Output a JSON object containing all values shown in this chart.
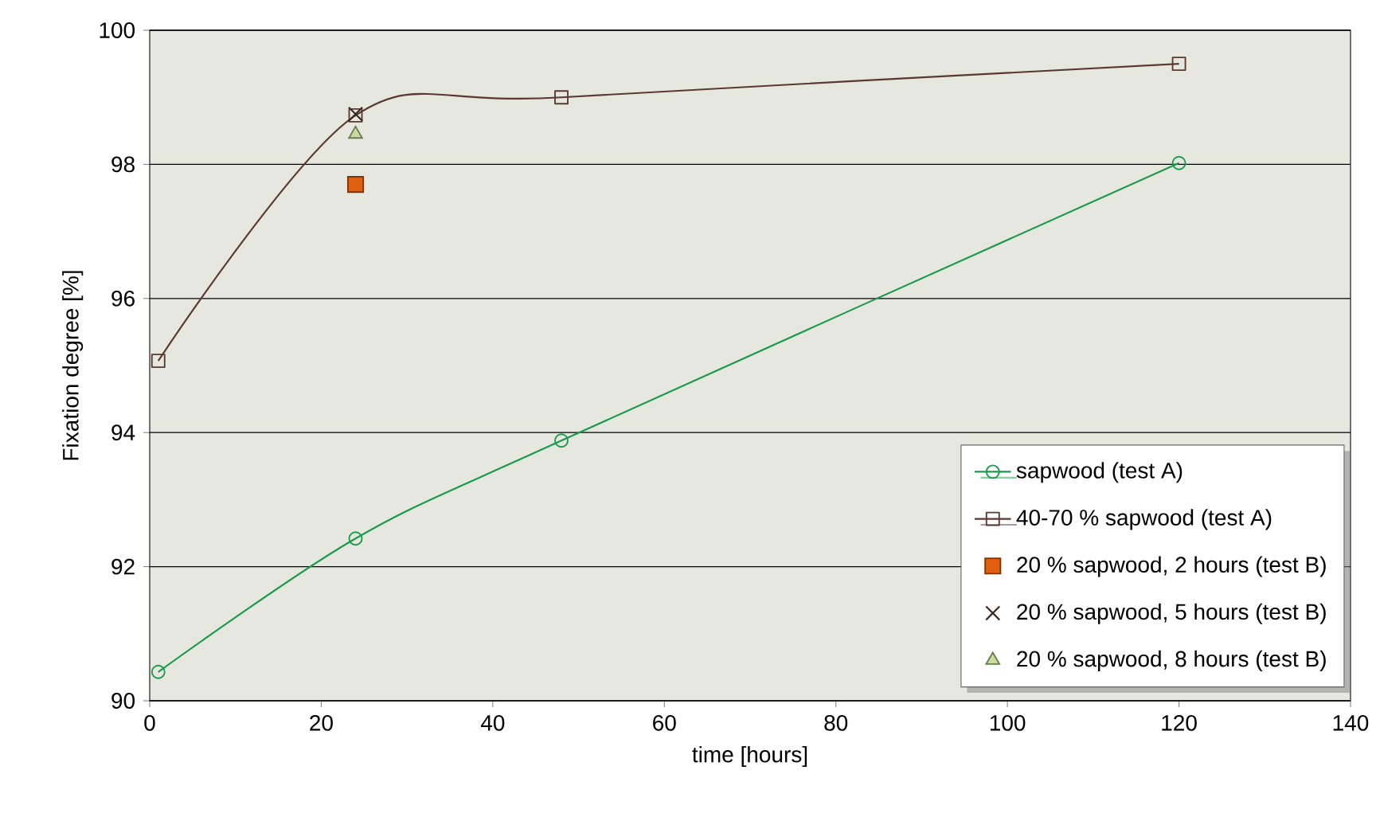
{
  "chart_data": {
    "type": "line",
    "xlabel": "time [hours]",
    "ylabel": "Fixation degree [%]",
    "xlim": [
      0,
      140
    ],
    "ylim": [
      90,
      100
    ],
    "xticks": [
      0,
      20,
      40,
      60,
      80,
      100,
      120,
      140
    ],
    "yticks": [
      90,
      92,
      94,
      96,
      98,
      100
    ],
    "grid": "y",
    "legend": "bottom right",
    "line_style": "solid",
    "series": [
      {
        "name": "sapwood (test A)",
        "marker": "circle",
        "color": "#1a9a4a",
        "x": [
          1,
          24,
          48,
          120
        ],
        "values": [
          90.43,
          92.42,
          93.88,
          98.02
        ]
      },
      {
        "name": "40-70 % sapwood (test A)",
        "marker": "square",
        "color": "#5a3a30",
        "x": [
          1,
          24,
          48,
          120
        ],
        "values": [
          95.07,
          98.73,
          99.0,
          99.5
        ]
      },
      {
        "name": "20 % sapwood, 2 hours (test B)",
        "type": "scatter",
        "marker": "square",
        "color": "#e0600f",
        "x": [
          24
        ],
        "values": [
          97.7
        ]
      },
      {
        "name": "20 % sapwood, 5 hours (test B)",
        "type": "scatter",
        "marker": "cross",
        "color": "#3a2a22",
        "x": [
          24
        ],
        "values": [
          98.75
        ]
      },
      {
        "name": "20 % sapwood, 8 hours (test B)",
        "type": "scatter",
        "marker": "triangle",
        "color": "#c8dc9c",
        "x": [
          24
        ],
        "values": [
          98.45
        ]
      }
    ]
  }
}
